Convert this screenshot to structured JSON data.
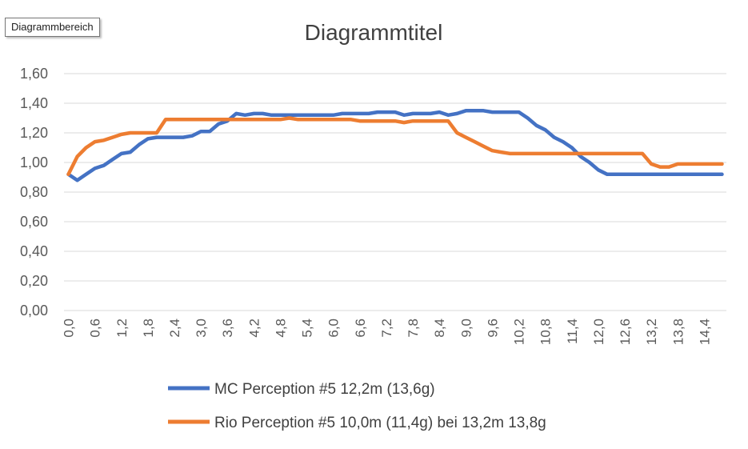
{
  "tooltip": "Diagrammbereich",
  "chart_data": {
    "type": "line",
    "title": "Diagrammtitel",
    "xlabel": "",
    "ylabel": "",
    "ylim": [
      0,
      1.6
    ],
    "yticks": [
      "0,00",
      "0,20",
      "0,40",
      "0,60",
      "0,80",
      "1,00",
      "1,20",
      "1,40",
      "1,60"
    ],
    "xticks": [
      "0,0",
      "0,6",
      "1,2",
      "1,8",
      "2,4",
      "3,0",
      "3,6",
      "4,2",
      "4,8",
      "5,4",
      "6,0",
      "6,6",
      "7,2",
      "7,8",
      "8,4",
      "9,0",
      "9,6",
      "10,2",
      "10,8",
      "11,4",
      "12,0",
      "12,6",
      "13,2",
      "13,8",
      "14,4"
    ],
    "x": [
      0.0,
      0.2,
      0.4,
      0.6,
      0.8,
      1.0,
      1.2,
      1.4,
      1.6,
      1.8,
      2.0,
      2.2,
      2.4,
      2.6,
      2.8,
      3.0,
      3.2,
      3.4,
      3.6,
      3.8,
      4.0,
      4.2,
      4.4,
      4.6,
      4.8,
      5.0,
      5.2,
      5.4,
      5.6,
      5.8,
      6.0,
      6.2,
      6.4,
      6.6,
      6.8,
      7.0,
      7.2,
      7.4,
      7.6,
      7.8,
      8.0,
      8.2,
      8.4,
      8.6,
      8.8,
      9.0,
      9.2,
      9.4,
      9.6,
      9.8,
      10.0,
      10.2,
      10.4,
      10.6,
      10.8,
      11.0,
      11.2,
      11.4,
      11.6,
      11.8,
      12.0,
      12.2,
      12.4,
      12.6,
      12.8,
      13.0,
      13.2,
      13.4,
      13.6,
      13.8,
      14.0,
      14.2,
      14.4,
      14.6,
      14.8
    ],
    "legend_position": "bottom",
    "series": [
      {
        "name": "MC Perception  #5  12,2m (13,6g)",
        "color": "#4472C4",
        "values": [
          0.92,
          0.88,
          0.92,
          0.96,
          0.98,
          1.02,
          1.06,
          1.07,
          1.12,
          1.16,
          1.17,
          1.17,
          1.17,
          1.17,
          1.18,
          1.21,
          1.21,
          1.26,
          1.28,
          1.33,
          1.32,
          1.33,
          1.33,
          1.32,
          1.32,
          1.32,
          1.32,
          1.32,
          1.32,
          1.32,
          1.32,
          1.33,
          1.33,
          1.33,
          1.33,
          1.34,
          1.34,
          1.34,
          1.32,
          1.33,
          1.33,
          1.33,
          1.34,
          1.32,
          1.33,
          1.35,
          1.35,
          1.35,
          1.34,
          1.34,
          1.34,
          1.34,
          1.3,
          1.25,
          1.22,
          1.17,
          1.14,
          1.1,
          1.04,
          1.0,
          0.95,
          0.92,
          0.92,
          0.92,
          0.92,
          0.92,
          0.92,
          0.92,
          0.92,
          0.92,
          0.92,
          0.92,
          0.92,
          0.92,
          0.92
        ]
      },
      {
        "name": "Rio Perception #5 10,0m (11,4g) bei 13,2m 13,8g",
        "color": "#ED7D31",
        "values": [
          0.92,
          1.04,
          1.1,
          1.14,
          1.15,
          1.17,
          1.19,
          1.2,
          1.2,
          1.2,
          1.2,
          1.29,
          1.29,
          1.29,
          1.29,
          1.29,
          1.29,
          1.29,
          1.29,
          1.29,
          1.29,
          1.29,
          1.29,
          1.29,
          1.29,
          1.3,
          1.29,
          1.29,
          1.29,
          1.29,
          1.29,
          1.29,
          1.29,
          1.28,
          1.28,
          1.28,
          1.28,
          1.28,
          1.27,
          1.28,
          1.28,
          1.28,
          1.28,
          1.28,
          1.2,
          1.17,
          1.14,
          1.11,
          1.08,
          1.07,
          1.06,
          1.06,
          1.06,
          1.06,
          1.06,
          1.06,
          1.06,
          1.06,
          1.06,
          1.06,
          1.06,
          1.06,
          1.06,
          1.06,
          1.06,
          1.06,
          0.99,
          0.97,
          0.97,
          0.99,
          0.99,
          0.99,
          0.99,
          0.99,
          0.99
        ]
      }
    ]
  }
}
